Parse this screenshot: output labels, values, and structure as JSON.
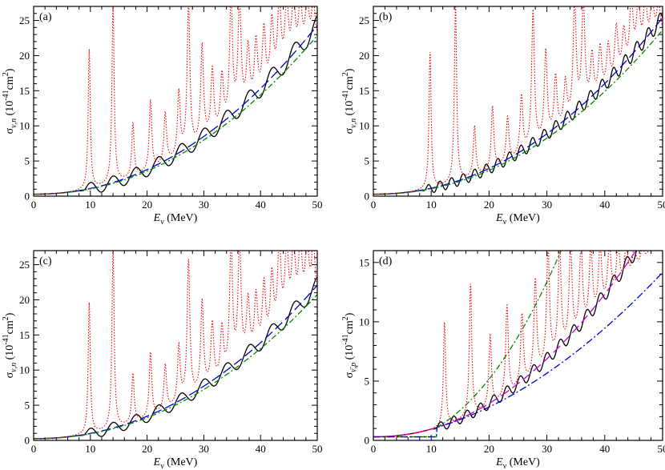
{
  "colors": {
    "black": "#000000",
    "blue": "#0000cc",
    "green": "#008800",
    "red": "#ee0000",
    "magenta": "#cc00cc"
  },
  "chart_data": [
    {
      "panel": "(a)",
      "type": "line",
      "xlabel": "E_ν (MeV)",
      "xlabel_main": "E",
      "xlabel_sub": "ν",
      "xlabel_unit": " (MeV)",
      "ylabel_sym": "σ",
      "ylabel_sub": "ν,n",
      "ylabel_unit": "(10",
      "ylabel_exp": "-41",
      "ylabel_unit2": "cm",
      "ylabel_exp2": "2",
      "ylabel_close": ")",
      "xlim": [
        0,
        50
      ],
      "ylim": [
        0,
        27
      ],
      "xticks": [
        0,
        10,
        20,
        30,
        40,
        50
      ],
      "yticks": [
        0,
        5,
        10,
        15,
        20,
        25
      ],
      "threshold": 9,
      "smooth": {
        "a": 0.0065,
        "p": 2.1,
        "base": 0.28
      },
      "green_scale": 0.94,
      "wiggle": {
        "amp": 0.75,
        "period": 4.0
      },
      "resonances": [
        {
          "x": 9.8,
          "h": 20.8
        },
        {
          "x": 14.0,
          "h": 27
        },
        {
          "x": 17.5,
          "h": 10.2
        },
        {
          "x": 20.6,
          "h": 13.5
        },
        {
          "x": 23.2,
          "h": 11.6
        },
        {
          "x": 25.6,
          "h": 14.3
        },
        {
          "x": 27.3,
          "h": 27
        },
        {
          "x": 29.7,
          "h": 21.0
        },
        {
          "x": 31.5,
          "h": 17.4
        },
        {
          "x": 33.2,
          "h": 16.5
        },
        {
          "x": 34.8,
          "h": 27
        },
        {
          "x": 36.3,
          "h": 27
        },
        {
          "x": 37.8,
          "h": 20.4
        },
        {
          "x": 39.2,
          "h": 21.3
        },
        {
          "x": 40.6,
          "h": 23.0
        },
        {
          "x": 42.0,
          "h": 24.0
        },
        {
          "x": 43.3,
          "h": 27
        },
        {
          "x": 44.6,
          "h": 27
        },
        {
          "x": 45.8,
          "h": 27
        },
        {
          "x": 47.0,
          "h": 27
        },
        {
          "x": 48.2,
          "h": 27
        },
        {
          "x": 49.3,
          "h": 27
        }
      ],
      "series": [
        {
          "name": "black solid",
          "color": "#000000",
          "dash": ""
        },
        {
          "name": "blue long-dash",
          "color": "#0000cc",
          "dash": "12,5"
        },
        {
          "name": "green dash-dot",
          "color": "#008800",
          "dash": "7,3,2,3"
        },
        {
          "name": "red dotted",
          "color": "#ee0000",
          "dash": "1.5,2"
        }
      ]
    },
    {
      "panel": "(b)",
      "type": "line",
      "xlabel": "E_ν (MeV)",
      "xlabel_main": "E",
      "xlabel_sub": "ν",
      "xlabel_unit": " (MeV)",
      "ylabel_sym": "σ",
      "ylabel_sub": "ν,n",
      "ylabel_unit": "(10",
      "ylabel_exp": "-41",
      "ylabel_unit2": "cm",
      "ylabel_exp2": "2",
      "ylabel_close": ")",
      "xlim": [
        0,
        50
      ],
      "ylim": [
        0,
        27
      ],
      "xticks": [
        0,
        10,
        20,
        30,
        40,
        50
      ],
      "yticks": [
        0,
        5,
        10,
        15,
        20,
        25
      ],
      "threshold": 9,
      "smooth": {
        "a": 0.0068,
        "p": 2.1,
        "base": 0.28
      },
      "green_scale": 0.93,
      "wiggle": {
        "amp": 0.6,
        "period": 2.0
      },
      "resonances": [
        {
          "x": 9.8,
          "h": 20.4
        },
        {
          "x": 14.2,
          "h": 27
        },
        {
          "x": 17.5,
          "h": 9.8
        },
        {
          "x": 20.6,
          "h": 12.6
        },
        {
          "x": 23.2,
          "h": 11.0
        },
        {
          "x": 25.6,
          "h": 13.9
        },
        {
          "x": 27.6,
          "h": 26.0
        },
        {
          "x": 29.8,
          "h": 20.2
        },
        {
          "x": 31.5,
          "h": 16.5
        },
        {
          "x": 33.2,
          "h": 15.7
        },
        {
          "x": 34.8,
          "h": 27
        },
        {
          "x": 36.3,
          "h": 27
        },
        {
          "x": 37.8,
          "h": 19.3
        },
        {
          "x": 39.2,
          "h": 20.5
        },
        {
          "x": 40.6,
          "h": 20.7
        },
        {
          "x": 42.0,
          "h": 23.3
        },
        {
          "x": 43.3,
          "h": 22.6
        },
        {
          "x": 44.6,
          "h": 27
        },
        {
          "x": 45.8,
          "h": 27
        },
        {
          "x": 47.0,
          "h": 27
        },
        {
          "x": 48.2,
          "h": 27
        },
        {
          "x": 49.3,
          "h": 27
        }
      ],
      "series": [
        {
          "name": "black solid",
          "color": "#000000",
          "dash": ""
        },
        {
          "name": "blue long-dash",
          "color": "#0000cc",
          "dash": "12,5"
        },
        {
          "name": "green dash-dot",
          "color": "#008800",
          "dash": "7,3,2,3"
        },
        {
          "name": "red dotted",
          "color": "#ee0000",
          "dash": "1.5,2"
        }
      ]
    },
    {
      "panel": "(c)",
      "type": "line",
      "xlabel": "E_ν (MeV)",
      "xlabel_main": "E",
      "xlabel_sub": "ν",
      "xlabel_unit": " (MeV)",
      "ylabel_sym": "σ",
      "ylabel_sub": "ν,n",
      "ylabel_unit": "(10",
      "ylabel_exp": "-41",
      "ylabel_unit2": "cm",
      "ylabel_exp2": "2",
      "ylabel_close": ")",
      "xlim": [
        0,
        50
      ],
      "ylim": [
        0,
        27
      ],
      "xticks": [
        0,
        10,
        20,
        30,
        40,
        50
      ],
      "yticks": [
        0,
        5,
        10,
        15,
        20,
        25
      ],
      "threshold": 9,
      "smooth": {
        "a": 0.0059,
        "p": 2.1,
        "base": 0.25
      },
      "green_scale": 0.94,
      "wiggle": {
        "amp": 0.65,
        "period": 4.0
      },
      "resonances": [
        {
          "x": 9.8,
          "h": 19.5
        },
        {
          "x": 14.0,
          "h": 27
        },
        {
          "x": 17.5,
          "h": 9.3
        },
        {
          "x": 20.6,
          "h": 12.3
        },
        {
          "x": 23.2,
          "h": 10.5
        },
        {
          "x": 25.6,
          "h": 13.0
        },
        {
          "x": 27.3,
          "h": 25.2
        },
        {
          "x": 29.7,
          "h": 19.4
        },
        {
          "x": 31.5,
          "h": 16.1
        },
        {
          "x": 33.2,
          "h": 15.4
        },
        {
          "x": 34.8,
          "h": 27
        },
        {
          "x": 36.3,
          "h": 27
        },
        {
          "x": 37.8,
          "h": 19.2
        },
        {
          "x": 39.2,
          "h": 19.8
        },
        {
          "x": 40.6,
          "h": 21.4
        },
        {
          "x": 42.0,
          "h": 22.6
        },
        {
          "x": 43.3,
          "h": 27
        },
        {
          "x": 44.6,
          "h": 27
        },
        {
          "x": 45.8,
          "h": 27
        },
        {
          "x": 47.0,
          "h": 27
        },
        {
          "x": 48.2,
          "h": 27
        },
        {
          "x": 49.3,
          "h": 27
        }
      ],
      "series": [
        {
          "name": "black solid",
          "color": "#000000",
          "dash": ""
        },
        {
          "name": "blue long-dash",
          "color": "#0000cc",
          "dash": "12,5"
        },
        {
          "name": "green dash-dot",
          "color": "#008800",
          "dash": "7,3,2,3"
        },
        {
          "name": "red dotted",
          "color": "#ee0000",
          "dash": "1.5,2"
        }
      ]
    },
    {
      "panel": "(d)",
      "type": "line",
      "xlabel": "E_ν (MeV)",
      "xlabel_main": "E",
      "xlabel_sub": "ν",
      "xlabel_unit": " (MeV)",
      "ylabel_sym": "σ",
      "ylabel_sub": "ν̄,p",
      "ylabel_unit": "(10",
      "ylabel_exp": "-41",
      "ylabel_unit2": "cm",
      "ylabel_exp2": "2",
      "ylabel_close": ")",
      "xlim": [
        0,
        50
      ],
      "ylim": [
        0,
        16
      ],
      "xticks": [
        0,
        10,
        20,
        30,
        40,
        50
      ],
      "yticks": [
        0,
        5,
        10,
        15
      ],
      "threshold": 11,
      "smooth": {
        "a": 0.0052,
        "p": 2.1,
        "base": 0.3
      },
      "green_curve": {
        "a": 0.0065,
        "p": 2.25
      },
      "blue_curve": {
        "a": 0.01,
        "p": 1.85
      },
      "wiggle": {
        "amp": 0.35,
        "period": 2.3
      },
      "resonances": [
        {
          "x": 12.3,
          "h": 9.9
        },
        {
          "x": 16.8,
          "h": 13.1
        },
        {
          "x": 20.2,
          "h": 8.7
        },
        {
          "x": 23.1,
          "h": 11.2
        },
        {
          "x": 25.7,
          "h": 10.4
        },
        {
          "x": 28.0,
          "h": 13.3
        },
        {
          "x": 30.2,
          "h": 16
        },
        {
          "x": 32.2,
          "h": 16
        },
        {
          "x": 34.1,
          "h": 16
        },
        {
          "x": 35.9,
          "h": 16
        },
        {
          "x": 37.6,
          "h": 16
        },
        {
          "x": 39.2,
          "h": 16
        },
        {
          "x": 40.8,
          "h": 16
        },
        {
          "x": 42.3,
          "h": 16
        },
        {
          "x": 43.7,
          "h": 16
        },
        {
          "x": 45.1,
          "h": 16
        },
        {
          "x": 46.5,
          "h": 16
        },
        {
          "x": 47.8,
          "h": 16
        },
        {
          "x": 49.1,
          "h": 16
        }
      ],
      "series": [
        {
          "name": "black solid",
          "color": "#000000",
          "dash": ""
        },
        {
          "name": "magenta long-dash",
          "color": "#cc00cc",
          "dash": "12,5"
        },
        {
          "name": "green dash-dot",
          "color": "#008800",
          "dash": "7,3,2,3"
        },
        {
          "name": "blue dash-dot",
          "color": "#0000cc",
          "dash": "9,3,2,3"
        },
        {
          "name": "red dotted",
          "color": "#ee0000",
          "dash": "1.5,2"
        }
      ]
    }
  ]
}
